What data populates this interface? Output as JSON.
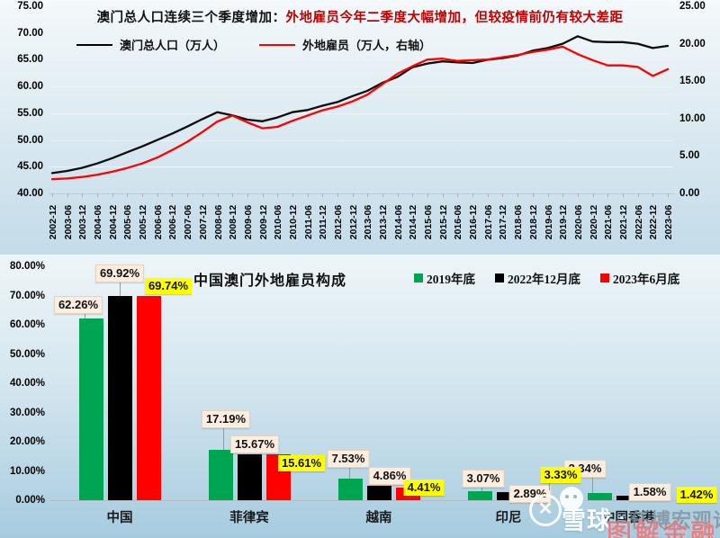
{
  "chart_data": [
    {
      "type": "line",
      "title_black": "澳门总人口连续三个季度增加：",
      "title_red": "外地雇员今年二季度大幅增加，但较疫情前仍有较大差距",
      "x": [
        "2002-12",
        "2003-06",
        "2003-12",
        "2004-06",
        "2004-12",
        "2005-06",
        "2005-12",
        "2006-06",
        "2006-12",
        "2007-06",
        "2007-12",
        "2008-06",
        "2008-12",
        "2009-06",
        "2009-12",
        "2010-06",
        "2010-12",
        "2011-06",
        "2011-12",
        "2012-06",
        "2012-12",
        "2013-06",
        "2013-12",
        "2014-06",
        "2014-12",
        "2015-06",
        "2015-12",
        "2016-06",
        "2016-12",
        "2017-06",
        "2017-12",
        "2018-06",
        "2018-12",
        "2019-06",
        "2019-12",
        "2020-06",
        "2020-12",
        "2021-06",
        "2021-12",
        "2022-06",
        "2022-12",
        "2023-06"
      ],
      "series": [
        {
          "name": "澳门总人口（万人）",
          "axis": "left",
          "color": "#0d0d0d",
          "values": [
            43.8,
            44.2,
            44.8,
            45.6,
            46.6,
            47.7,
            48.8,
            50.0,
            51.2,
            52.5,
            53.9,
            55.2,
            54.6,
            53.8,
            53.5,
            54.2,
            55.2,
            55.6,
            56.4,
            57.1,
            58.2,
            59.2,
            60.7,
            61.8,
            63.6,
            64.3,
            64.7,
            64.5,
            64.4,
            65.0,
            65.3,
            65.8,
            66.7,
            67.2,
            68.0,
            69.4,
            68.4,
            68.3,
            68.3,
            68.0,
            67.2,
            67.6
          ]
        },
        {
          "name": "外地雇员（万人，右轴）",
          "axis": "right",
          "color": "#ff0000",
          "values": [
            1.9,
            2.0,
            2.2,
            2.5,
            2.9,
            3.4,
            4.0,
            4.8,
            5.8,
            6.9,
            8.2,
            9.6,
            10.4,
            9.5,
            8.7,
            8.9,
            9.7,
            10.4,
            11.1,
            11.6,
            12.3,
            13.2,
            14.6,
            16.0,
            17.0,
            17.9,
            18.0,
            17.7,
            17.8,
            17.9,
            18.2,
            18.5,
            18.9,
            19.2,
            19.6,
            18.6,
            17.8,
            17.1,
            17.1,
            16.9,
            15.7,
            16.6
          ]
        }
      ],
      "left_ylim": [
        40,
        75
      ],
      "right_ylim": [
        0,
        25
      ],
      "left_ticks": [
        "40.00",
        "45.00",
        "50.00",
        "55.00",
        "60.00",
        "65.00",
        "70.00",
        "75.00"
      ],
      "right_ticks": [
        "0.00",
        "5.00",
        "10.00",
        "15.00",
        "20.00",
        "25.00"
      ],
      "grid": true,
      "legend_position": "top-left"
    },
    {
      "type": "bar",
      "title": "中国澳门外地雇员构成",
      "categories": [
        "中国",
        "菲律宾",
        "越南",
        "印尼",
        "中国香港"
      ],
      "series": [
        {
          "name": "2019年底",
          "color": "#00a551",
          "values": [
            62.26,
            17.19,
            7.53,
            3.07,
            2.34
          ]
        },
        {
          "name": "2022年12月底",
          "color": "#000000",
          "values": [
            69.92,
            15.67,
            4.86,
            2.89,
            1.58
          ]
        },
        {
          "name": "2023年6月底",
          "color": "#ff0000",
          "values": [
            69.74,
            15.61,
            4.41,
            3.33,
            1.42
          ]
        }
      ],
      "value_labels": [
        [
          "62.26%",
          "17.19%",
          "7.53%",
          "3.07%",
          "2.34%"
        ],
        [
          "69.92%",
          "15.67%",
          "4.86%",
          "2.89%",
          "1.58%"
        ],
        [
          "69.74%",
          "15.61%",
          "4.41%",
          "3.33%",
          "1.42%"
        ]
      ],
      "ylim": [
        0,
        80
      ],
      "yticks": [
        "0.00%",
        "10.00%",
        "20.00%",
        "30.00%",
        "40.00%",
        "50.00%",
        "60.00%",
        "70.00%",
        "80.00%"
      ],
      "grid": false,
      "legend_position": "top-right"
    }
  ],
  "colors": {
    "accent_red": "#ff0000",
    "accent_green": "#00a551",
    "accent_black": "#000000",
    "title_red": "#c00000",
    "label_cream_bg": "#fbeee0",
    "label_yellow_bg": "#ffff00"
  },
  "watermark": {
    "logo": "xueqiu-circle-x-icon",
    "mascot": "snowball-face-icon",
    "site": "雪球",
    "separator": "·",
    "account": "任博宏观论道",
    "stamp": "图解金融"
  }
}
